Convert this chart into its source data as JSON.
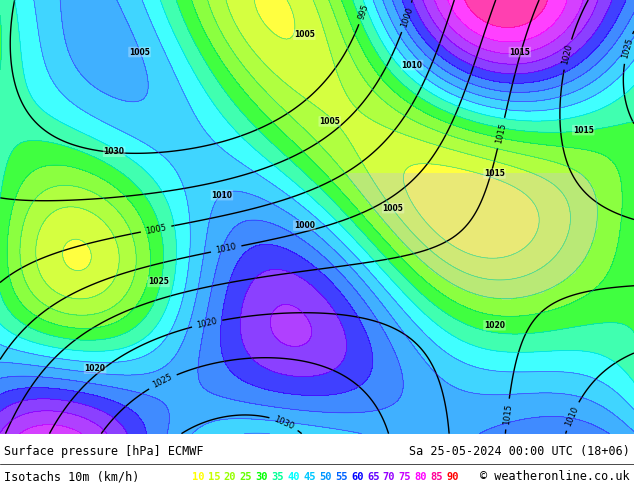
{
  "title_left": "Surface pressure [hPa] ECMWF",
  "title_right": "Sa 25-05-2024 00:00 UTC (18+06)",
  "legend_label": "Isotachs 10m (km/h)",
  "copyright": "© weatheronline.co.uk",
  "isotach_values": [
    10,
    15,
    20,
    25,
    30,
    35,
    40,
    45,
    50,
    55,
    60,
    65,
    70,
    75,
    80,
    85,
    90
  ],
  "isotach_colors": [
    "#ffff00",
    "#c8ff00",
    "#96ff00",
    "#64ff00",
    "#00ff00",
    "#00ff96",
    "#00ffff",
    "#00c8ff",
    "#0096ff",
    "#0064ff",
    "#0000ff",
    "#6400ff",
    "#9600ff",
    "#c800ff",
    "#ff00ff",
    "#ff0096",
    "#ff0000"
  ],
  "bg_color": "#ffffff",
  "map_bg": "#e8f4e8",
  "bottom_bar_color": "#000000",
  "text_color": "#000000",
  "bottom_bg": "#ffffff",
  "figsize": [
    6.34,
    4.9
  ],
  "dpi": 100
}
